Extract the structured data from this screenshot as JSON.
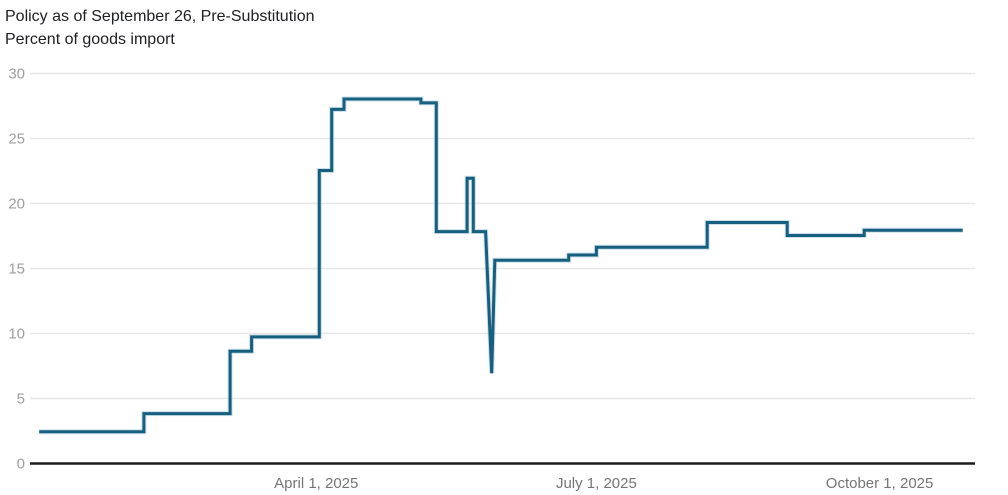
{
  "title": "Policy as of September 26, Pre-Substitution",
  "subtitle": "Percent of goods import",
  "colors": {
    "line": "#175f7f",
    "line_halo": "#9dc4d6",
    "grid": "#e7e7e7",
    "axis": "#1c1c1c",
    "y_tick_text": "#9e9e9e",
    "x_tick_text": "#757575",
    "title_text": "#202124",
    "background": "#ffffff"
  },
  "chart_data": {
    "type": "line",
    "line_style": "step",
    "title": "Policy as of September 26, Pre-Substitution",
    "subtitle": "Percent of goods import",
    "legend": "none",
    "grid": true,
    "x_axis": {
      "type": "time",
      "start": "2024-12-29",
      "end": "2025-11-01",
      "ticks": [
        {
          "date": "2025-04-01",
          "label": "April 1, 2025"
        },
        {
          "date": "2025-07-01",
          "label": "July 1, 2025"
        },
        {
          "date": "2025-10-01",
          "label": "October 1, 2025"
        }
      ]
    },
    "y_axis": {
      "min": 0,
      "max": 30,
      "ticks": [
        0,
        5,
        10,
        15,
        20,
        25,
        30
      ]
    },
    "series": [
      {
        "name": "Percent of goods import",
        "vertices": [
          [
            "2025-01-01",
            2.4
          ],
          [
            "2025-02-04",
            2.4
          ],
          [
            "2025-02-04",
            3.8
          ],
          [
            "2025-03-04",
            3.8
          ],
          [
            "2025-03-04",
            8.6
          ],
          [
            "2025-03-11",
            8.6
          ],
          [
            "2025-03-11",
            9.7
          ],
          [
            "2025-04-02",
            9.7
          ],
          [
            "2025-04-02",
            22.5
          ],
          [
            "2025-04-06",
            22.5
          ],
          [
            "2025-04-06",
            27.2
          ],
          [
            "2025-04-10",
            27.2
          ],
          [
            "2025-04-10",
            28.0
          ],
          [
            "2025-05-05",
            28.0
          ],
          [
            "2025-05-05",
            27.7
          ],
          [
            "2025-05-10",
            27.7
          ],
          [
            "2025-05-10",
            17.8
          ],
          [
            "2025-05-20",
            17.8
          ],
          [
            "2025-05-20",
            21.9
          ],
          [
            "2025-05-22",
            21.9
          ],
          [
            "2025-05-22",
            17.8
          ],
          [
            "2025-05-26",
            17.8
          ],
          [
            "2025-05-28",
            6.9
          ],
          [
            "2025-05-29",
            15.6
          ],
          [
            "2025-06-22",
            15.6
          ],
          [
            "2025-06-22",
            16.0
          ],
          [
            "2025-07-01",
            16.0
          ],
          [
            "2025-07-01",
            16.6
          ],
          [
            "2025-08-06",
            16.6
          ],
          [
            "2025-08-06",
            18.5
          ],
          [
            "2025-09-01",
            18.5
          ],
          [
            "2025-09-01",
            17.5
          ],
          [
            "2025-09-26",
            17.5
          ],
          [
            "2025-09-26",
            17.9
          ],
          [
            "2025-10-28",
            17.9
          ]
        ]
      }
    ]
  }
}
